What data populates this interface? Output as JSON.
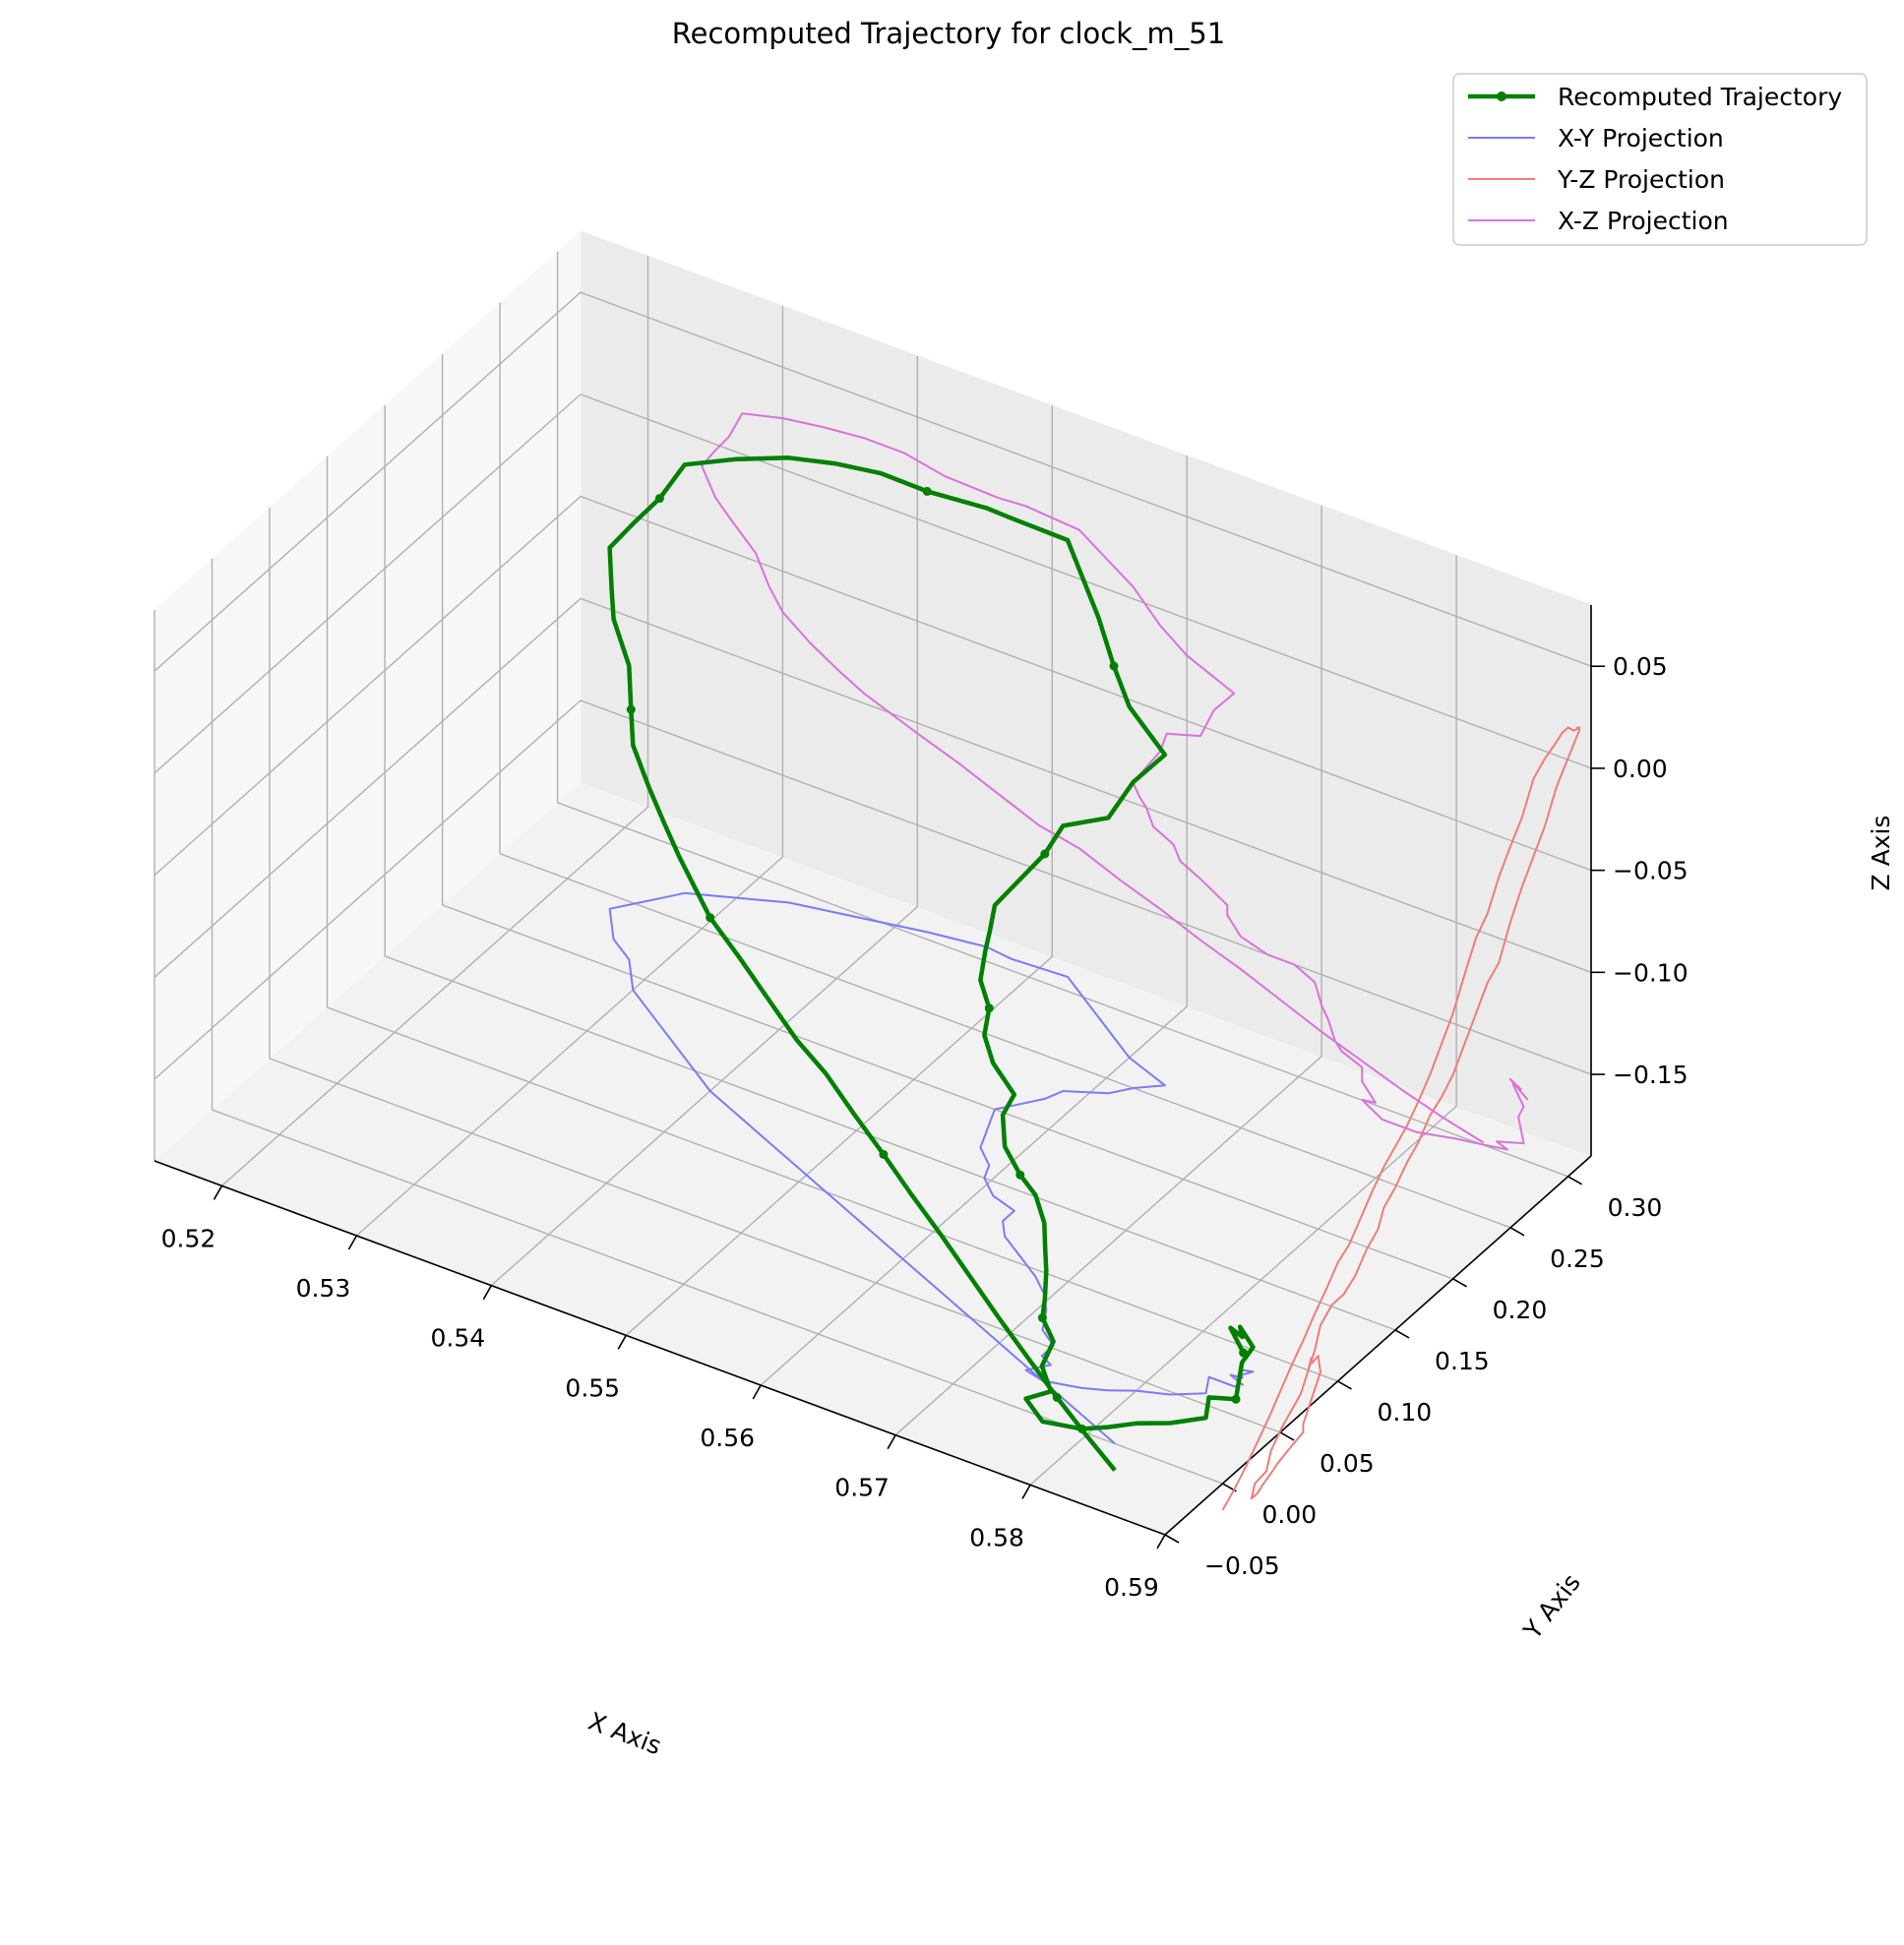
{
  "chart_data": {
    "type": "line",
    "title": "Recomputed Trajectory for clock_m_51",
    "xlabel": "X Axis",
    "ylabel": "Y Axis",
    "zlabel": "Z Axis",
    "xlim": [
      0.515,
      0.59
    ],
    "ylim": [
      -0.05,
      0.32
    ],
    "zlim": [
      -0.19,
      0.08
    ],
    "xticks": [
      "0.52",
      "0.53",
      "0.54",
      "0.55",
      "0.56",
      "0.57",
      "0.58",
      "0.59"
    ],
    "yticks": [
      "−0.05",
      "0.00",
      "0.05",
      "0.10",
      "0.15",
      "0.20",
      "0.25",
      "0.30"
    ],
    "zticks": [
      "−0.15",
      "−0.10",
      "−0.05",
      "0.00",
      "0.05"
    ],
    "legend_position": "top-right",
    "grid": true,
    "colors": {
      "trajectory": "#008000",
      "xy_projection": "#7b7bf5",
      "yz_projection": "#f07b7b",
      "xz_projection": "#da72da"
    },
    "series": [
      {
        "name": "Recomputed Trajectory",
        "style": "line-with-markers",
        "points": [
          [
            0.5853,
            0.073,
            -0.174
          ],
          [
            0.584,
            0.077,
            -0.167
          ],
          [
            0.5848,
            0.078,
            -0.17
          ],
          [
            0.5842,
            0.083,
            -0.169
          ],
          [
            0.585,
            0.085,
            -0.178
          ],
          [
            0.5846,
            0.08,
            -0.184
          ],
          [
            0.585,
            0.07,
            -0.196
          ],
          [
            0.583,
            0.07,
            -0.2
          ],
          [
            0.5838,
            0.058,
            -0.202
          ],
          [
            0.582,
            0.048,
            -0.204
          ],
          [
            0.58,
            0.042,
            -0.206
          ],
          [
            0.5785,
            0.035,
            -0.208
          ],
          [
            0.577,
            0.03,
            -0.21
          ],
          [
            0.5745,
            0.025,
            -0.21
          ],
          [
            0.573,
            0.028,
            -0.204
          ],
          [
            0.574,
            0.038,
            -0.203
          ],
          [
            0.573,
            0.042,
            -0.195
          ],
          [
            0.573,
            0.052,
            -0.188
          ],
          [
            0.5715,
            0.06,
            -0.184
          ],
          [
            0.571,
            0.068,
            -0.18
          ],
          [
            0.5705,
            0.075,
            -0.171
          ],
          [
            0.57,
            0.08,
            -0.165
          ],
          [
            0.5695,
            0.085,
            -0.155
          ],
          [
            0.568,
            0.095,
            -0.15
          ],
          [
            0.566,
            0.105,
            -0.15
          ],
          [
            0.564,
            0.115,
            -0.146
          ],
          [
            0.563,
            0.125,
            -0.138
          ],
          [
            0.563,
            0.135,
            -0.133
          ],
          [
            0.561,
            0.14,
            -0.125
          ],
          [
            0.5595,
            0.15,
            -0.12
          ],
          [
            0.559,
            0.16,
            -0.113
          ],
          [
            0.5575,
            0.17,
            -0.108
          ],
          [
            0.557,
            0.18,
            -0.1
          ],
          [
            0.5565,
            0.19,
            -0.096
          ],
          [
            0.556,
            0.2,
            -0.09
          ],
          [
            0.557,
            0.21,
            -0.08
          ],
          [
            0.558,
            0.22,
            -0.07
          ],
          [
            0.5585,
            0.23,
            -0.06
          ],
          [
            0.561,
            0.24,
            -0.055
          ],
          [
            0.562,
            0.25,
            -0.04
          ],
          [
            0.5635,
            0.26,
            -0.028
          ],
          [
            0.56,
            0.27,
            -0.018
          ],
          [
            0.558,
            0.28,
            -0.008
          ],
          [
            0.556,
            0.29,
            0.006
          ],
          [
            0.554,
            0.3,
            0.015
          ],
          [
            0.552,
            0.31,
            0.024
          ],
          [
            0.548,
            0.308,
            0.026
          ],
          [
            0.546,
            0.31,
            0.025
          ],
          [
            0.542,
            0.305,
            0.026
          ],
          [
            0.539,
            0.3,
            0.03
          ],
          [
            0.536,
            0.295,
            0.03
          ],
          [
            0.533,
            0.29,
            0.028
          ],
          [
            0.53,
            0.28,
            0.025
          ],
          [
            0.527,
            0.27,
            0.02
          ],
          [
            0.526,
            0.26,
            0.006
          ],
          [
            0.525,
            0.25,
            -0.003
          ],
          [
            0.524,
            0.24,
            -0.013
          ],
          [
            0.525,
            0.23,
            -0.026
          ],
          [
            0.526,
            0.22,
            -0.033
          ],
          [
            0.528,
            0.21,
            -0.046
          ],
          [
            0.529,
            0.2,
            -0.06
          ],
          [
            0.53,
            0.19,
            -0.07
          ],
          [
            0.532,
            0.18,
            -0.08
          ],
          [
            0.534,
            0.17,
            -0.088
          ],
          [
            0.536,
            0.16,
            -0.095
          ],
          [
            0.538,
            0.15,
            -0.1
          ],
          [
            0.54,
            0.14,
            -0.105
          ],
          [
            0.543,
            0.13,
            -0.112
          ],
          [
            0.546,
            0.12,
            -0.12
          ],
          [
            0.549,
            0.11,
            -0.128
          ],
          [
            0.552,
            0.1,
            -0.132
          ],
          [
            0.555,
            0.09,
            -0.14
          ],
          [
            0.558,
            0.08,
            -0.147
          ],
          [
            0.561,
            0.07,
            -0.155
          ],
          [
            0.564,
            0.06,
            -0.162
          ],
          [
            0.567,
            0.05,
            -0.17
          ],
          [
            0.57,
            0.04,
            -0.178
          ],
          [
            0.573,
            0.03,
            -0.185
          ],
          [
            0.576,
            0.02,
            -0.192
          ],
          [
            0.579,
            0.01,
            -0.198
          ],
          [
            0.582,
            0.0,
            -0.203
          ]
        ]
      },
      {
        "name": "X-Y Projection",
        "style": "line",
        "plane": "z = -0.19"
      },
      {
        "name": "Y-Z Projection",
        "style": "line",
        "plane": "x = 0.59"
      },
      {
        "name": "X-Z Projection",
        "style": "line",
        "plane": "y = -0.05"
      }
    ]
  }
}
